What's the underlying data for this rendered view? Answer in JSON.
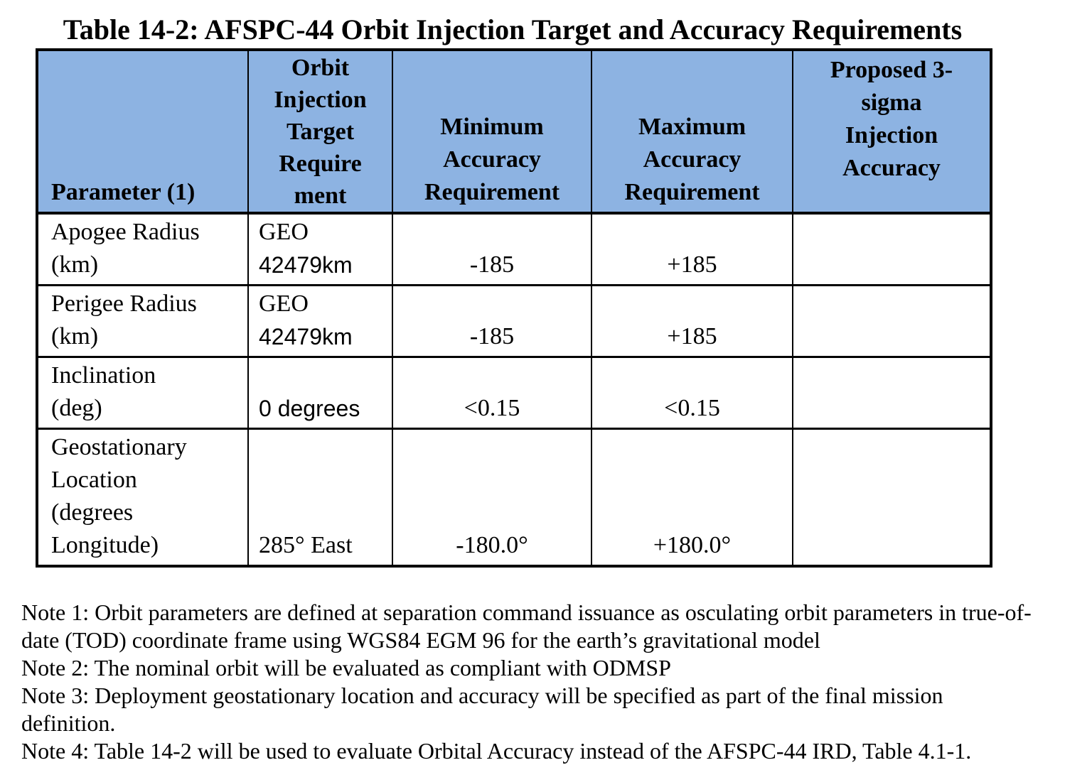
{
  "title": "Table 14-2: AFSPC-44 Orbit Injection Target and Accuracy Requirements",
  "colors": {
    "header_bg": "#8DB3E2",
    "table_border": "#000000"
  },
  "table": {
    "headers": {
      "parameter": "Parameter (1)",
      "target": "Orbit\nInjection\nTarget\nRequire\nment",
      "minimum": "Minimum\nAccuracy\nRequirement",
      "maximum": "Maximum\nAccuracy\nRequirement",
      "proposed": "Proposed 3-\nsigma\nInjection\nAccuracy"
    },
    "rows": [
      {
        "parameter": "Apogee Radius\n(km)",
        "target_prefix": "GEO",
        "target_value": "42479km",
        "min": "-185",
        "max": "+185",
        "proposed": ""
      },
      {
        "parameter": "Perigee Radius\n(km)",
        "target_prefix": "GEO",
        "target_value": "42479km",
        "min": "-185",
        "max": "+185",
        "proposed": ""
      },
      {
        "parameter": "Inclination\n(deg)",
        "target_prefix": "",
        "target_value": "0 degrees",
        "min": "<0.15",
        "max": "<0.15",
        "proposed": ""
      },
      {
        "parameter": "Geostationary\nLocation\n(degrees\nLongitude)",
        "target_prefix": "",
        "target_value": "285° East",
        "min": "-180.0°",
        "max": "+180.0°",
        "proposed": ""
      }
    ]
  },
  "notes": [
    {
      "text": "Note 1:  Orbit parameters are defined at separation command issuance as osculating orbit parameters in true-of-\ndate (TOD) coordinate frame using WGS84 EGM 96 for the earth’s gravitational model"
    },
    {
      "text": "Note 2: The nominal orbit will be evaluated as compliant with ODMSP"
    },
    {
      "text": "Note 3: Deployment geostationary location and accuracy will be specified as part of the final mission\ndefinition."
    },
    {
      "text": "Note 4: Table 14-2 will be used to evaluate Orbital Accuracy instead of the AFSPC-44 IRD, Table 4.1-1."
    }
  ]
}
